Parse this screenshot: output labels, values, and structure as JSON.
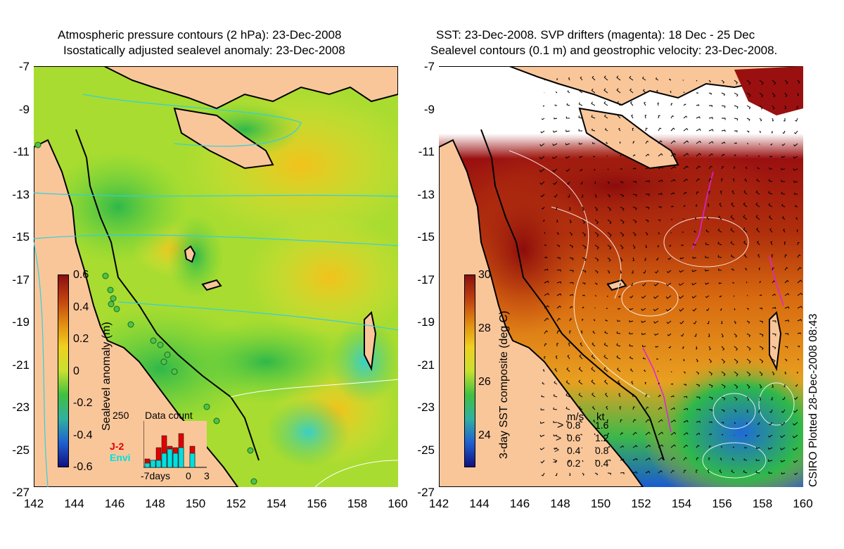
{
  "left_panel": {
    "title_line1": "Atmospheric pressure contours (2 hPa): 23-Dec-2008",
    "title_line2": "Isostatically adjusted sealevel anomaly: 23-Dec-2008",
    "colorbar_label": "Sealevel anomaly (m)",
    "colorbar_ticks": [
      "0.6",
      "0.4",
      "0.2",
      "0",
      "-0.2",
      "-0.4",
      "-0.6"
    ],
    "inset": {
      "title": "Data count",
      "max_label": "250",
      "legend_j2": "J-2",
      "legend_envi": "Envi",
      "x_labels": [
        "-7days",
        "0",
        "3"
      ],
      "colors": {
        "j2": "#e00000",
        "envi": "#00e0e0"
      }
    }
  },
  "right_panel": {
    "title_line1": "SST: 23-Dec-2008. SVP drifters (magenta): 18 Dec - 25 Dec",
    "title_line2": "Sealevel contours (0.1 m) and geostrophic velocity: 23-Dec-2008.",
    "colorbar_label": "3-day SST composite (deg C)",
    "colorbar_ticks": [
      "30",
      "28",
      "26",
      "24"
    ],
    "velocity_legend": {
      "header_ms": "m/s",
      "header_kt": "kt",
      "rows": [
        {
          "ms": "0.8",
          "kt": "1.6"
        },
        {
          "ms": "0.6",
          "kt": "1.2"
        },
        {
          "ms": "0.4",
          "kt": "0.8"
        },
        {
          "ms": "0.2",
          "kt": "0.4"
        }
      ]
    }
  },
  "axes": {
    "y_ticks": [
      "-7",
      "-9",
      "-11",
      "-13",
      "-15",
      "-17",
      "-19",
      "-21",
      "-23",
      "-25",
      "-27"
    ],
    "x_ticks": [
      "142",
      "144",
      "146",
      "148",
      "150",
      "152",
      "154",
      "156",
      "158",
      "160"
    ]
  },
  "credit": "CSIRO Plotted 28-Dec-2008 08:43",
  "colors": {
    "land": "#f9c69a",
    "coast": "#000000",
    "sla_green": "#3fc43f",
    "sla_yellow": "#e8e030",
    "sst_red": "#a01010",
    "sst_orange": "#e07a10"
  }
}
